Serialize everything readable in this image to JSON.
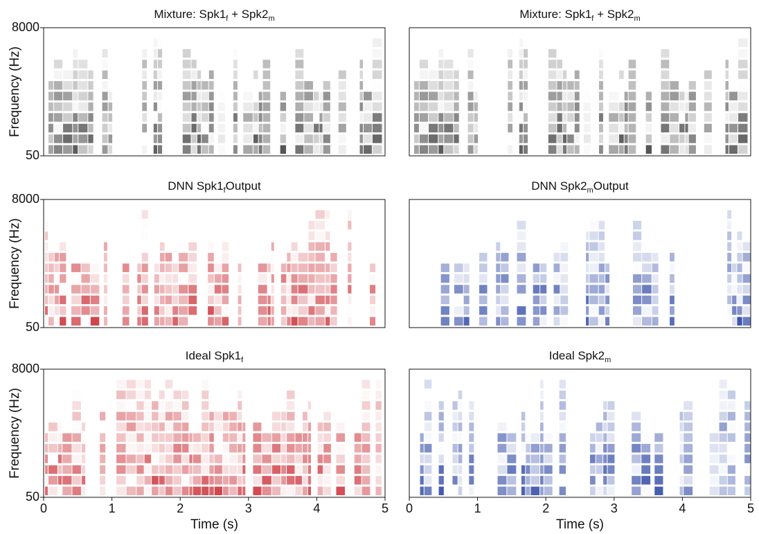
{
  "chart_data": [
    {
      "type": "spectrogram",
      "title": [
        {
          "text": "Mixture: Spk1"
        },
        {
          "sub": "f"
        },
        {
          "text": " + Spk2"
        },
        {
          "sub": "m"
        }
      ],
      "color": "#333333",
      "ylabel": "Frequency (Hz)",
      "xlim": [
        0,
        5
      ],
      "ylim": [
        50,
        8000
      ],
      "yticks": [
        50,
        8000
      ]
    },
    {
      "type": "spectrogram",
      "title": [
        {
          "text": "Mixture: Spk1"
        },
        {
          "sub": "f"
        },
        {
          "text": " + Spk2"
        },
        {
          "sub": "m"
        }
      ],
      "color": "#333333",
      "xlim": [
        0,
        5
      ],
      "ylim": [
        50,
        8000
      ]
    },
    {
      "type": "spectrogram",
      "title": [
        {
          "text": "DNN Spk1"
        },
        {
          "sub": "f"
        },
        {
          "text": "Output"
        }
      ],
      "color": "#c8242c",
      "ylabel": "Frequency (Hz)",
      "xlim": [
        0,
        5
      ],
      "ylim": [
        50,
        8000
      ],
      "yticks": [
        50,
        8000
      ]
    },
    {
      "type": "spectrogram",
      "title": [
        {
          "text": "DNN Spk2"
        },
        {
          "sub": "m"
        },
        {
          "text": "Output"
        }
      ],
      "color": "#1f3a9e",
      "xlim": [
        0,
        5
      ],
      "ylim": [
        50,
        8000
      ]
    },
    {
      "type": "spectrogram",
      "title": [
        {
          "text": "Ideal Spk1"
        },
        {
          "sub": "f"
        }
      ],
      "color": "#c8242c",
      "ylabel": "Frequency (Hz)",
      "xlabel": "Time (s)",
      "xlim": [
        0,
        5
      ],
      "ylim": [
        50,
        8000
      ],
      "yticks": [
        50,
        8000
      ],
      "xticks": [
        0,
        1,
        2,
        3,
        4,
        5
      ]
    },
    {
      "type": "spectrogram",
      "title": [
        {
          "text": "Ideal Spk2"
        },
        {
          "sub": "m"
        }
      ],
      "color": "#1f3a9e",
      "xlabel": "Time (s)",
      "xlim": [
        0,
        5
      ],
      "ylim": [
        50,
        8000
      ],
      "xticks": [
        0,
        1,
        2,
        3,
        4,
        5
      ]
    }
  ]
}
